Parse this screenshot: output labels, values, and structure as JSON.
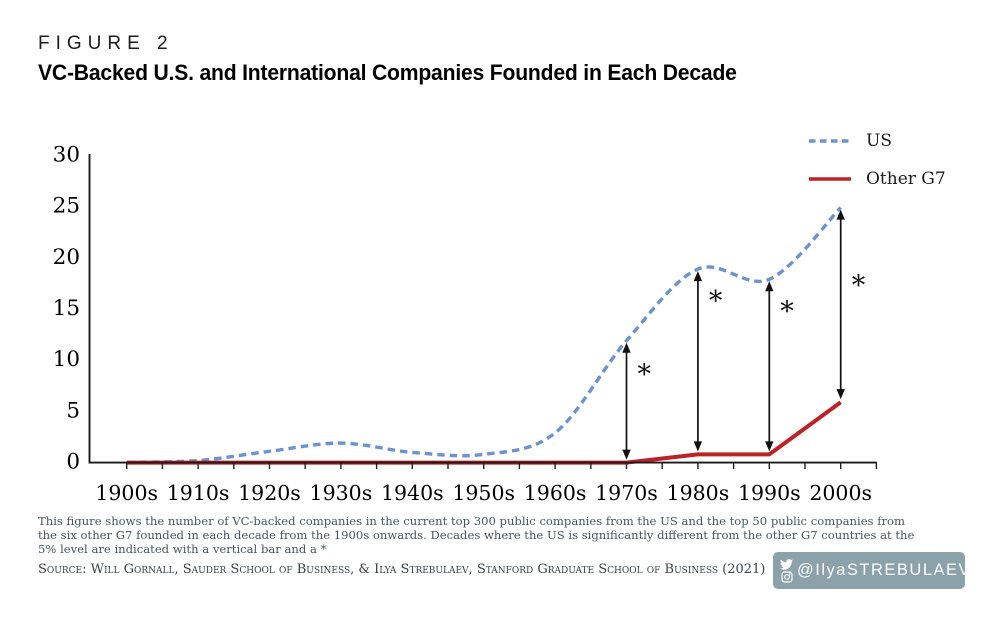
{
  "header": {
    "figure_label": "FIGURE 2",
    "title": "VC-Backed U.S. and International Companies Founded in Each Decade"
  },
  "chart_data": {
    "type": "line",
    "title": "VC-Backed U.S. and International Companies Founded in Each Decade",
    "categories": [
      "1900s",
      "1910s",
      "1920s",
      "1930s",
      "1940s",
      "1950s",
      "1960s",
      "1970s",
      "1980s",
      "1990s",
      "2000s"
    ],
    "series": [
      {
        "name": "US",
        "color": "#6d92d1",
        "style": "dashed",
        "smooth": true,
        "values": [
          0,
          0.2,
          1.1,
          1.9,
          1.0,
          0.8,
          2.9,
          11.9,
          18.9,
          17.9,
          24.9
        ]
      },
      {
        "name": "Other G7",
        "color": "#bd2227",
        "style": "solid",
        "smooth": false,
        "values": [
          0,
          0,
          0,
          0,
          0,
          0,
          0,
          0,
          0.8,
          0.8,
          5.9
        ]
      }
    ],
    "ylim": [
      0,
      30
    ],
    "y_ticks": [
      "30",
      "25",
      "20",
      "15",
      "10",
      "5",
      "0"
    ],
    "grid": false,
    "legend_position": "top-right",
    "significance_markers": {
      "symbol": "*",
      "decades": [
        "1970s",
        "1980s",
        "1990s",
        "2000s"
      ],
      "note": "vertical double-headed arrow between US and Other G7 values"
    }
  },
  "notes": {
    "description": "This figure shows the number of VC-backed companies in the current top 300 public companies from the US and the top 50 public companies from the six other G7 founded in each decade from the 1900s onwards. Decades where the US is significantly different from the other G7 countries at the 5% level are indicated with a vertical bar and a *",
    "source": "Source: Will Gornall, Sauder School of Business, & Ilya Strebulaev, Stanford Graduate School of Business (2021)",
    "social_handle": "@IlyaSTREBULAEV"
  },
  "colors": {
    "us_line": "#6d92d1",
    "g7_line": "#bd2227",
    "axis": "#1a1a1a",
    "footnote_text": "#45555d",
    "badge_background": "#8ca2aa",
    "badge_text": "#ffffff"
  }
}
